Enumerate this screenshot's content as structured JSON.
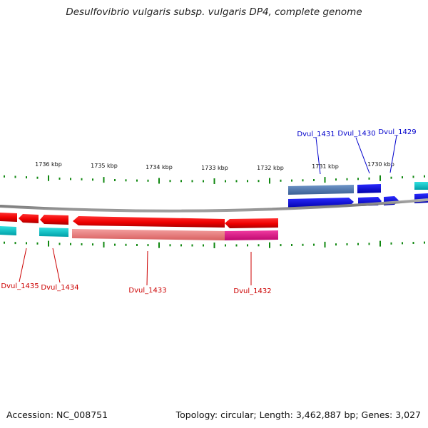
{
  "title": "Desulfovibrio vulgaris subsp. vulgaris DP4, complete genome",
  "footer": {
    "accession": "Accession: NC_008751",
    "topology": "Topology: circular; Length: 3,462,887 bp; Genes: 3,027"
  },
  "scale": {
    "labels": [
      "1736 kbp",
      "1735 kbp",
      "1734 kbp",
      "1733 kbp",
      "1732 kbp",
      "1731 kbp",
      "1730 kbp"
    ]
  },
  "genes": {
    "forward": [
      "Dvul_1431",
      "Dvul_1430",
      "Dvul_1429"
    ],
    "reverse": [
      "Dvul_1435",
      "Dvul_1434",
      "Dvul_1433",
      "Dvul_1432"
    ]
  },
  "colors": {
    "forward_label": "#0000cc",
    "reverse_label": "#cc0000",
    "cds_forward": "#0000ee",
    "cds_reverse": "#ee0000",
    "gene_forward": "#4a78b0",
    "gene_reverse": "#f08080",
    "cds_reverse_alt": "#ee1188",
    "trna_like": "#00c8c8",
    "tick": "#118811",
    "backbone": "#808080"
  }
}
